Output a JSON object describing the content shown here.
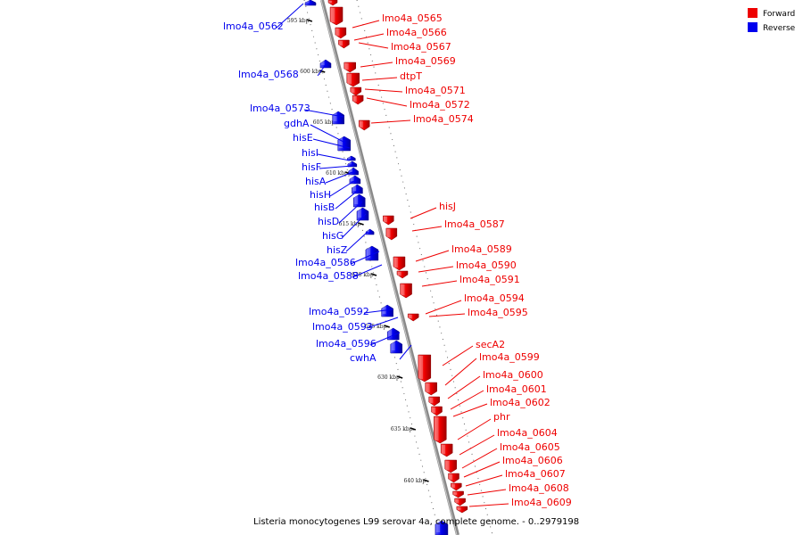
{
  "caption": "Listeria monocytogenes L99 serovar 4a, complete genome. - 0..2979198",
  "legend": {
    "forward_label": "Forward",
    "reverse_label": "Reverse",
    "forward_color": "#ee0000",
    "reverse_color": "#0000ee"
  },
  "ticks": [
    "595 kbp",
    "600 kbp",
    "605 kbp",
    "610 kbp",
    "615 kbp",
    "620 kbp",
    "625 kbp",
    "630 kbp",
    "635 kbp",
    "640 kbp"
  ],
  "forward_genes": [
    "lmo4a_0565",
    "lmo4a_0566",
    "lmo4a_0567",
    "lmo4a_0569",
    "dtpT",
    "lmo4a_0571",
    "lmo4a_0572",
    "lmo4a_0574",
    "hisJ",
    "lmo4a_0587",
    "lmo4a_0589",
    "lmo4a_0590",
    "lmo4a_0591",
    "lmo4a_0594",
    "lmo4a_0595",
    "secA2",
    "lmo4a_0599",
    "lmo4a_0600",
    "lmo4a_0601",
    "lmo4a_0602",
    "phr",
    "lmo4a_0604",
    "lmo4a_0605",
    "lmo4a_0606",
    "lmo4a_0607",
    "lmo4a_0608",
    "lmo4a_0609"
  ],
  "reverse_genes": [
    "lmo4a_0562",
    "lmo4a_0568",
    "lmo4a_0573",
    "gdhA",
    "hisE",
    "hisI",
    "hisF",
    "hisA",
    "hisH",
    "hisB",
    "hisD",
    "hisG",
    "hisZ",
    "lmo4a_0586",
    "lmo4a_0588",
    "lmo4a_0592",
    "lmo4a_0593",
    "lmo4a_0596",
    "cwhA"
  ]
}
